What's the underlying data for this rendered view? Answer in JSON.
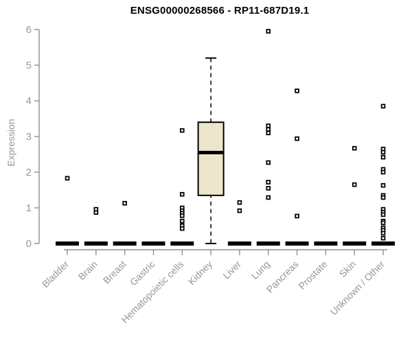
{
  "title": "ENSG00000268566 - RP11-687D19.1",
  "colors": {
    "background": "#ffffff",
    "title_text": "#000000",
    "axis_line": "#8f8f8f",
    "muted_text": "#979797",
    "data_ink": "#000000",
    "box_fill": "#ede6ca"
  },
  "chart_data": {
    "type": "boxplot",
    "title": "ENSG00000268566 - RP11-687D19.1",
    "xlabel": "",
    "ylabel": "Expression",
    "ylim": [
      0,
      6
    ],
    "yticks": [
      0,
      1,
      2,
      3,
      4,
      5,
      6
    ],
    "grid": false,
    "legend": "none",
    "categories": [
      "Bladder",
      "Brain",
      "Breast",
      "Gastric",
      "Hematopoietic cells",
      "Kidney",
      "Liver",
      "Lung",
      "Pancreas",
      "Prostate",
      "Skin",
      "Unknown / Other"
    ],
    "boxes": [
      {
        "category": "Bladder",
        "collapsed": true,
        "q1": 0,
        "median": 0,
        "q3": 0,
        "whisker_low": 0,
        "whisker_high": 0,
        "outliers": [
          1.83
        ]
      },
      {
        "category": "Brain",
        "collapsed": true,
        "q1": 0,
        "median": 0,
        "q3": 0,
        "whisker_low": 0,
        "whisker_high": 0,
        "outliers": [
          0.96,
          0.87
        ]
      },
      {
        "category": "Breast",
        "collapsed": true,
        "q1": 0,
        "median": 0,
        "q3": 0,
        "whisker_low": 0,
        "whisker_high": 0,
        "outliers": [
          1.13
        ]
      },
      {
        "category": "Gastric",
        "collapsed": true,
        "q1": 0,
        "median": 0,
        "q3": 0,
        "whisker_low": 0,
        "whisker_high": 0,
        "outliers": []
      },
      {
        "category": "Hematopoietic cells",
        "collapsed": true,
        "q1": 0,
        "median": 0,
        "q3": 0,
        "whisker_low": 0,
        "whisker_high": 0,
        "outliers": [
          3.17,
          1.38,
          1.0,
          0.92,
          0.85,
          0.78,
          0.63,
          0.5,
          0.42
        ]
      },
      {
        "category": "Kidney",
        "collapsed": false,
        "q1": 1.35,
        "median": 2.55,
        "q3": 3.4,
        "whisker_low": 0,
        "whisker_high": 5.2,
        "outliers": []
      },
      {
        "category": "Liver",
        "collapsed": true,
        "q1": 0,
        "median": 0,
        "q3": 0,
        "whisker_low": 0,
        "whisker_high": 0,
        "outliers": [
          1.15,
          0.92
        ]
      },
      {
        "category": "Lung",
        "collapsed": true,
        "q1": 0,
        "median": 0,
        "q3": 0,
        "whisker_low": 0,
        "whisker_high": 0,
        "outliers": [
          5.95,
          3.3,
          3.2,
          3.1,
          2.27,
          1.72,
          1.55,
          1.29
        ]
      },
      {
        "category": "Pancreas",
        "collapsed": true,
        "q1": 0,
        "median": 0,
        "q3": 0,
        "whisker_low": 0,
        "whisker_high": 0,
        "outliers": [
          4.28,
          2.94,
          0.77
        ]
      },
      {
        "category": "Prostate",
        "collapsed": true,
        "q1": 0,
        "median": 0,
        "q3": 0,
        "whisker_low": 0,
        "whisker_high": 0,
        "outliers": []
      },
      {
        "category": "Skin",
        "collapsed": true,
        "q1": 0,
        "median": 0,
        "q3": 0,
        "whisker_low": 0,
        "whisker_high": 0,
        "outliers": [
          2.67,
          1.65
        ]
      },
      {
        "category": "Unknown / Other",
        "collapsed": true,
        "q1": 0,
        "median": 0,
        "q3": 0,
        "whisker_low": 0,
        "whisker_high": 0,
        "outliers": [
          3.85,
          2.65,
          2.56,
          2.42,
          2.08,
          2.0,
          1.63,
          1.35,
          1.29,
          0.96,
          0.88,
          0.81,
          0.63,
          0.58,
          0.44,
          0.37,
          0.29,
          0.15
        ]
      }
    ]
  }
}
